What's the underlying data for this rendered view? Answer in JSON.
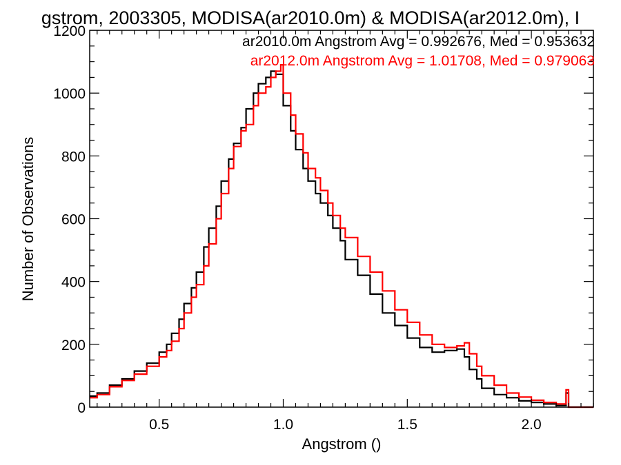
{
  "chart_data": {
    "type": "line",
    "title": "gstrom, 2003305, MODISA(ar2010.0m) & MODISA(ar2012.0m), I",
    "xlabel": "Angstrom ()",
    "ylabel": "Number of Observations",
    "xlim": [
      0.22,
      2.25
    ],
    "ylim": [
      0,
      1200
    ],
    "xticks": [
      0.5,
      1.0,
      1.5,
      2.0
    ],
    "xtick_labels": [
      "0.5",
      "1.0",
      "1.5",
      "2.0"
    ],
    "yticks": [
      0,
      200,
      400,
      600,
      800,
      1000,
      1200
    ],
    "ytick_labels": [
      "0",
      "200",
      "400",
      "600",
      "800",
      "1000",
      "1200"
    ],
    "grid": false,
    "step_style": true,
    "annotations": [
      {
        "text": "ar2010.0m Angstrom Avg = 0.992676, Med = 0.953632",
        "color": "#000000"
      },
      {
        "text": "ar2012.0m Angstrom Avg = 1.01708, Med = 0.979063",
        "color": "#ff0000"
      }
    ],
    "series": [
      {
        "color": "#000000",
        "x": [
          0.22,
          0.25,
          0.3,
          0.35,
          0.4,
          0.45,
          0.5,
          0.53,
          0.55,
          0.58,
          0.6,
          0.63,
          0.65,
          0.68,
          0.7,
          0.73,
          0.75,
          0.78,
          0.8,
          0.83,
          0.85,
          0.88,
          0.9,
          0.93,
          0.95,
          0.97,
          1.0,
          1.03,
          1.05,
          1.08,
          1.1,
          1.13,
          1.15,
          1.18,
          1.2,
          1.23,
          1.25,
          1.3,
          1.35,
          1.4,
          1.45,
          1.5,
          1.55,
          1.6,
          1.65,
          1.7,
          1.73,
          1.75,
          1.78,
          1.8,
          1.85,
          1.9,
          1.95,
          2.0,
          2.05,
          2.1,
          2.14,
          2.15,
          2.16,
          2.25
        ],
        "y": [
          35,
          45,
          70,
          90,
          115,
          140,
          175,
          200,
          235,
          280,
          330,
          380,
          430,
          510,
          570,
          640,
          720,
          790,
          840,
          890,
          950,
          1000,
          1030,
          1050,
          1070,
          1060,
          960,
          880,
          820,
          760,
          720,
          680,
          650,
          610,
          570,
          530,
          470,
          420,
          360,
          300,
          260,
          220,
          190,
          175,
          180,
          185,
          160,
          120,
          90,
          60,
          40,
          30,
          20,
          15,
          10,
          5,
          45,
          0,
          0,
          0
        ]
      },
      {
        "color": "#ff0000",
        "x": [
          0.22,
          0.25,
          0.3,
          0.35,
          0.4,
          0.45,
          0.5,
          0.53,
          0.55,
          0.58,
          0.6,
          0.63,
          0.65,
          0.68,
          0.7,
          0.73,
          0.75,
          0.78,
          0.8,
          0.83,
          0.85,
          0.88,
          0.9,
          0.93,
          0.95,
          0.97,
          0.99,
          1.0,
          1.03,
          1.05,
          1.08,
          1.1,
          1.13,
          1.15,
          1.18,
          1.2,
          1.23,
          1.25,
          1.3,
          1.35,
          1.4,
          1.45,
          1.5,
          1.55,
          1.6,
          1.65,
          1.7,
          1.73,
          1.75,
          1.78,
          1.8,
          1.85,
          1.9,
          1.95,
          2.0,
          2.05,
          2.1,
          2.14,
          2.15,
          2.16,
          2.25
        ],
        "y": [
          30,
          40,
          65,
          85,
          105,
          130,
          160,
          180,
          210,
          250,
          300,
          350,
          390,
          450,
          520,
          600,
          680,
          760,
          830,
          880,
          900,
          960,
          1000,
          1020,
          1050,
          1070,
          1090,
          1000,
          930,
          870,
          810,
          760,
          730,
          690,
          650,
          610,
          570,
          540,
          480,
          430,
          370,
          310,
          270,
          230,
          200,
          190,
          195,
          205,
          170,
          130,
          100,
          70,
          45,
          32,
          22,
          15,
          10,
          55,
          0,
          0,
          0
        ]
      }
    ]
  }
}
